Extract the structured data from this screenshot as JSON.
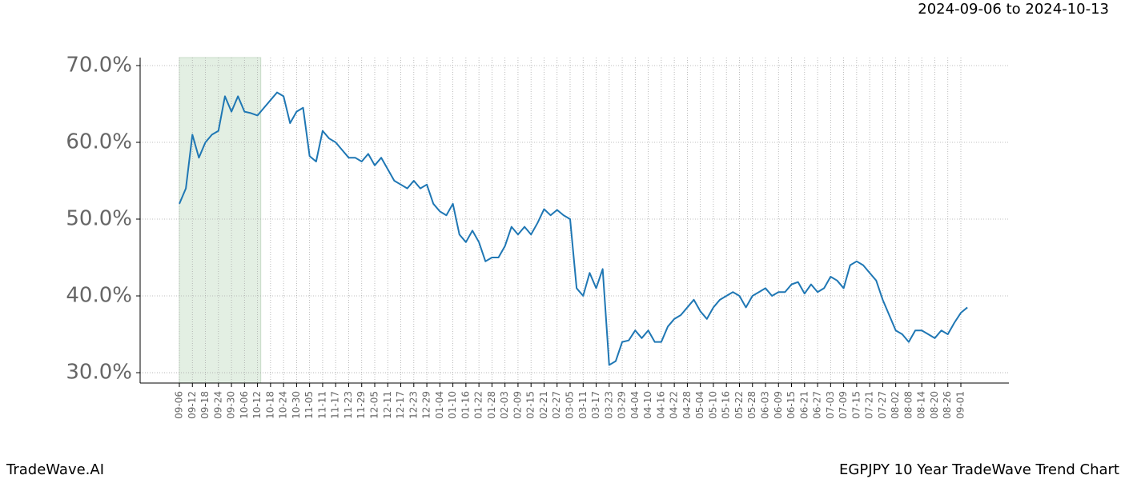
{
  "header": {
    "date_range": "2024-09-06 to 2024-10-13"
  },
  "footer": {
    "left": "TradeWave.AI",
    "right": "EGPJPY 10 Year TradeWave Trend Chart"
  },
  "chart_data": {
    "type": "line",
    "categories": [
      "09-06",
      null,
      "09-12",
      null,
      "09-18",
      null,
      "09-24",
      null,
      "09-30",
      null,
      "10-06",
      null,
      "10-12",
      null,
      "10-18",
      null,
      "10-24",
      null,
      "10-30",
      null,
      "11-05",
      null,
      "11-11",
      null,
      "11-17",
      null,
      "11-23",
      null,
      "11-29",
      null,
      "12-05",
      null,
      "12-11",
      null,
      "12-17",
      null,
      "12-23",
      null,
      "12-29",
      null,
      "01-04",
      null,
      "01-10",
      null,
      "01-16",
      null,
      "01-22",
      null,
      "01-28",
      null,
      "02-03",
      null,
      "02-09",
      null,
      "02-15",
      null,
      "02-21",
      null,
      "02-27",
      null,
      "03-05",
      null,
      "03-11",
      null,
      "03-17",
      null,
      "03-23",
      null,
      "03-29",
      null,
      "04-04",
      null,
      "04-10",
      null,
      "04-16",
      null,
      "04-22",
      null,
      "04-28",
      null,
      "05-04",
      null,
      "05-10",
      null,
      "05-16",
      null,
      "05-22",
      null,
      "05-28",
      null,
      "06-03",
      null,
      "06-09",
      null,
      "06-15",
      null,
      "06-21",
      null,
      "06-27",
      null,
      "07-03",
      null,
      "07-09",
      null,
      "07-15",
      null,
      "07-21",
      null,
      "07-27",
      null,
      "08-02",
      null,
      "08-08",
      null,
      "08-14",
      null,
      "08-20",
      null,
      "08-26",
      null,
      "09-01",
      null
    ],
    "values": [
      52,
      54,
      61,
      58,
      60,
      61,
      61.5,
      66,
      64,
      66,
      64,
      63.8,
      63.5,
      64.5,
      65.5,
      66.5,
      66,
      62.5,
      64,
      64.5,
      58.2,
      57.5,
      61.5,
      60.5,
      60,
      59,
      58,
      58,
      57.5,
      58.5,
      57,
      58,
      56.5,
      55,
      54.5,
      54,
      55,
      54,
      54.5,
      52,
      51,
      50.5,
      52,
      48,
      47,
      48.5,
      47,
      44.5,
      45,
      45,
      46.5,
      49,
      48,
      49,
      48,
      49.5,
      51.3,
      50.5,
      51.2,
      50.5,
      50,
      41,
      40,
      43,
      41,
      43.5,
      31,
      31.5,
      34,
      34.2,
      35.5,
      34.5,
      35.5,
      34,
      34,
      36,
      37,
      37.5,
      38.5,
      39.5,
      38,
      37,
      38.5,
      39.5,
      40,
      40.5,
      40,
      38.5,
      40,
      40.5,
      41,
      40,
      40.5,
      40.5,
      41.5,
      41.8,
      40.3,
      41.5,
      40.5,
      41,
      42.5,
      42,
      41,
      44,
      44.5,
      44,
      43,
      42,
      39.5,
      37.5,
      35.5,
      35,
      34,
      35.5,
      35.5,
      35,
      34.5,
      35.5,
      35,
      36.5,
      37.8,
      38.5
    ],
    "color": "#1f77b4",
    "ylim": [
      28.65,
      71.04
    ],
    "yticks": [
      {
        "value": 30,
        "label": "30.0%"
      },
      {
        "value": 40,
        "label": "40.0%"
      },
      {
        "value": 50,
        "label": "50.0%"
      },
      {
        "value": 60,
        "label": "60.0%"
      },
      {
        "value": 70,
        "label": "70.0%"
      }
    ],
    "grid": true,
    "shade_range": [
      "09-06",
      "10-12"
    ],
    "shade_color": "#e3efe3"
  }
}
